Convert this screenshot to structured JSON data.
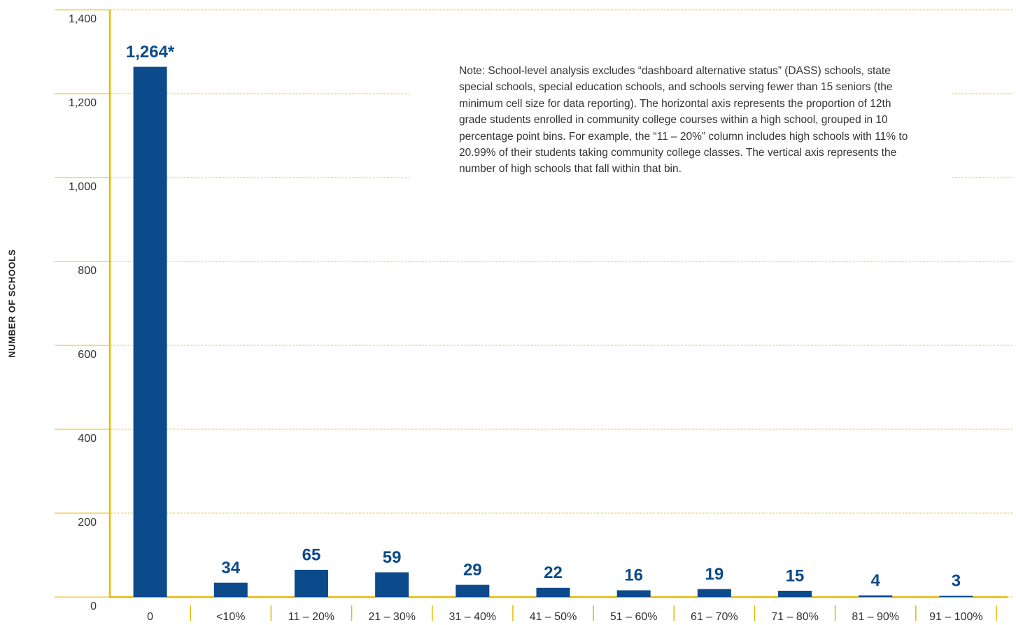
{
  "chart_data": {
    "type": "bar",
    "y_axis_label": "NUMBER OF SCHOOLS",
    "annotation": "Note: School-level analysis excludes “dashboard alternative status” (DASS) schools, state special schools, special education schools, and schools serving fewer than 15 seniors (the minimum cell size for data reporting). The horizontal axis represents the proportion of 12th grade students enrolled in community college courses within a high school, grouped in 10 percentage point bins. For example, the “11 – 20%” column includes high schools with 11% to 20.99% of their students taking community college classes. The vertical axis represents the number of high schools that fall within that bin.",
    "categories": [
      "0",
      "<10%",
      "11 – 20%",
      "21 – 30%",
      "31 – 40%",
      "41 – 50%",
      "51 – 60%",
      "61 – 70%",
      "71 – 80%",
      "81 – 90%",
      "91 – 100%"
    ],
    "values": [
      1264,
      34,
      65,
      59,
      29,
      22,
      16,
      19,
      15,
      4,
      3
    ],
    "value_labels": [
      "1,264*",
      "34",
      "65",
      "59",
      "29",
      "22",
      "16",
      "19",
      "15",
      "4",
      "3"
    ],
    "color": "#0b4a8b",
    "ylim": [
      0,
      1400
    ],
    "yticks": [
      0,
      200,
      400,
      600,
      800,
      {
        "value": 1000,
        "label": "1,000"
      },
      {
        "value": 1200,
        "label": "1,200"
      },
      {
        "value": 1400,
        "label": "1,400"
      }
    ],
    "grid": true
  }
}
